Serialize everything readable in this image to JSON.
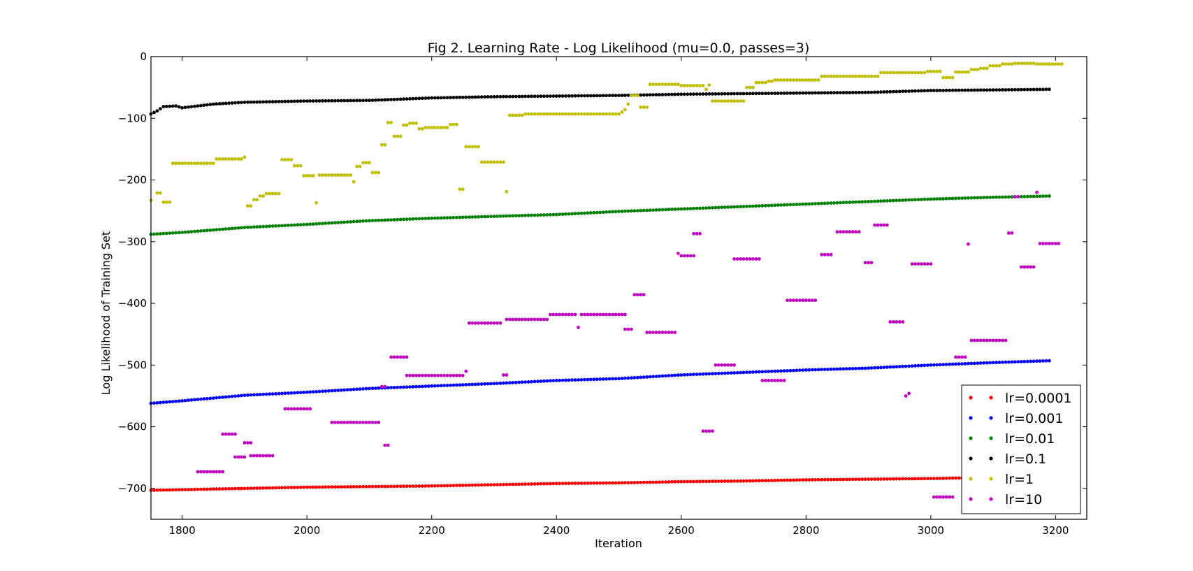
{
  "chart_data": {
    "type": "scatter",
    "title": "Fig 2. Learning Rate - Log Likelihood (mu=0.0, passes=3)",
    "xlabel": "Iteration",
    "ylabel": "Log Likelihood of Training Set",
    "xlim": [
      1750,
      3250
    ],
    "ylim": [
      -750,
      0
    ],
    "x_ticks": [
      1800,
      2000,
      2200,
      2400,
      2600,
      2800,
      3000,
      3200
    ],
    "y_ticks": [
      0,
      -100,
      -200,
      -300,
      -400,
      -500,
      -600,
      -700
    ],
    "x_tick_labels": [
      "1800",
      "2000",
      "2200",
      "2400",
      "2600",
      "2800",
      "3000",
      "3200"
    ],
    "y_tick_labels": [
      "0",
      "−100",
      "−200",
      "−300",
      "−400",
      "−500",
      "−600",
      "−700"
    ],
    "grid": false,
    "legend_position": "lower-right",
    "series": [
      {
        "name": "lr=0.0001",
        "color": "#ff0000",
        "mode": "smooth",
        "x_range": [
          1750,
          3190
        ],
        "step": 5,
        "anchors": [
          [
            1750,
            -703
          ],
          [
            1800,
            -702
          ],
          [
            1900,
            -700
          ],
          [
            2000,
            -698
          ],
          [
            2100,
            -697
          ],
          [
            2200,
            -696
          ],
          [
            2300,
            -694
          ],
          [
            2400,
            -692
          ],
          [
            2500,
            -691
          ],
          [
            2600,
            -689
          ],
          [
            2700,
            -688
          ],
          [
            2800,
            -686
          ],
          [
            2900,
            -685
          ],
          [
            3000,
            -684
          ],
          [
            3100,
            -682
          ],
          [
            3190,
            -680
          ]
        ]
      },
      {
        "name": "lr=0.001",
        "color": "#0000ff",
        "mode": "smooth",
        "x_range": [
          1750,
          3190
        ],
        "step": 5,
        "anchors": [
          [
            1750,
            -562
          ],
          [
            1800,
            -558
          ],
          [
            1900,
            -549
          ],
          [
            2000,
            -544
          ],
          [
            2100,
            -538
          ],
          [
            2200,
            -534
          ],
          [
            2300,
            -530
          ],
          [
            2400,
            -525
          ],
          [
            2500,
            -522
          ],
          [
            2600,
            -516
          ],
          [
            2700,
            -512
          ],
          [
            2800,
            -508
          ],
          [
            2900,
            -505
          ],
          [
            3000,
            -500
          ],
          [
            3100,
            -496
          ],
          [
            3190,
            -493
          ]
        ]
      },
      {
        "name": "lr=0.01",
        "color": "#008000",
        "mode": "smooth",
        "x_range": [
          1750,
          3190
        ],
        "step": 5,
        "anchors": [
          [
            1750,
            -288
          ],
          [
            1800,
            -285
          ],
          [
            1900,
            -277
          ],
          [
            2000,
            -272
          ],
          [
            2100,
            -266
          ],
          [
            2200,
            -262
          ],
          [
            2300,
            -259
          ],
          [
            2400,
            -256
          ],
          [
            2500,
            -251
          ],
          [
            2600,
            -247
          ],
          [
            2700,
            -243
          ],
          [
            2800,
            -239
          ],
          [
            2900,
            -235
          ],
          [
            3000,
            -231
          ],
          [
            3100,
            -228
          ],
          [
            3190,
            -226
          ]
        ]
      },
      {
        "name": "lr=0.1",
        "color": "#000000",
        "mode": "smooth",
        "x_range": [
          1750,
          3190
        ],
        "step": 5,
        "anchors": [
          [
            1750,
            -93
          ],
          [
            1760,
            -88
          ],
          [
            1770,
            -81
          ],
          [
            1790,
            -80
          ],
          [
            1800,
            -83
          ],
          [
            1850,
            -77
          ],
          [
            1900,
            -74
          ],
          [
            2000,
            -72
          ],
          [
            2100,
            -71
          ],
          [
            2200,
            -67
          ],
          [
            2300,
            -65
          ],
          [
            2400,
            -64
          ],
          [
            2500,
            -63
          ],
          [
            2600,
            -61
          ],
          [
            2700,
            -60
          ],
          [
            2800,
            -59
          ],
          [
            2900,
            -58
          ],
          [
            3000,
            -55
          ],
          [
            3100,
            -54
          ],
          [
            3190,
            -53
          ]
        ]
      },
      {
        "name": "lr=1",
        "color": "#bfbf00",
        "mode": "segments",
        "step": 5,
        "segments": [
          [
            1750,
            1750,
            -233
          ],
          [
            1760,
            1765,
            -221
          ],
          [
            1770,
            1780,
            -236
          ],
          [
            1785,
            1850,
            -173
          ],
          [
            1855,
            1895,
            -166
          ],
          [
            1900,
            1900,
            -163
          ],
          [
            1905,
            1910,
            -242
          ],
          [
            1915,
            1920,
            -232
          ],
          [
            1925,
            1930,
            -226
          ],
          [
            1935,
            1955,
            -222
          ],
          [
            1960,
            1975,
            -167
          ],
          [
            1980,
            1990,
            -177
          ],
          [
            1995,
            2010,
            -193
          ],
          [
            2015,
            2015,
            -237
          ],
          [
            2020,
            2070,
            -192
          ],
          [
            2075,
            2075,
            -203
          ],
          [
            2080,
            2085,
            -178
          ],
          [
            2090,
            2100,
            -172
          ],
          [
            2105,
            2115,
            -188
          ],
          [
            2120,
            2125,
            -143
          ],
          [
            2130,
            2135,
            -107
          ],
          [
            2140,
            2150,
            -129
          ],
          [
            2155,
            2160,
            -111
          ],
          [
            2165,
            2175,
            -108
          ],
          [
            2180,
            2185,
            -117
          ],
          [
            2190,
            2225,
            -115
          ],
          [
            2230,
            2240,
            -110
          ],
          [
            2245,
            2250,
            -215
          ],
          [
            2255,
            2275,
            -146
          ],
          [
            2280,
            2315,
            -171
          ],
          [
            2320,
            2320,
            -219
          ],
          [
            2325,
            2345,
            -95
          ],
          [
            2350,
            2500,
            -93
          ],
          [
            2505,
            2505,
            -90
          ],
          [
            2510,
            2510,
            -86
          ],
          [
            2515,
            2515,
            -77
          ],
          [
            2520,
            2530,
            -63
          ],
          [
            2535,
            2545,
            -82
          ],
          [
            2550,
            2595,
            -45
          ],
          [
            2600,
            2635,
            -47
          ],
          [
            2640,
            2640,
            -53
          ],
          [
            2645,
            2645,
            -46
          ],
          [
            2650,
            2700,
            -72
          ],
          [
            2705,
            2715,
            -50
          ],
          [
            2720,
            2735,
            -42
          ],
          [
            2740,
            2745,
            -40
          ],
          [
            2750,
            2820,
            -38
          ],
          [
            2825,
            2915,
            -32
          ],
          [
            2920,
            2990,
            -26
          ],
          [
            2995,
            3015,
            -24
          ],
          [
            3020,
            3035,
            -34
          ],
          [
            3040,
            3060,
            -25
          ],
          [
            3065,
            3075,
            -21
          ],
          [
            3080,
            3090,
            -19
          ],
          [
            3095,
            3110,
            -15
          ],
          [
            3115,
            3130,
            -12
          ],
          [
            3135,
            3165,
            -11
          ],
          [
            3170,
            3210,
            -12
          ]
        ]
      },
      {
        "name": "lr=10",
        "color": "#bf00bf",
        "mode": "segments",
        "step": 5,
        "segments": [
          [
            1825,
            1865,
            -673
          ],
          [
            1865,
            1885,
            -612
          ],
          [
            1885,
            1900,
            -649
          ],
          [
            1900,
            1910,
            -626
          ],
          [
            1910,
            1945,
            -647
          ],
          [
            1965,
            2005,
            -571
          ],
          [
            2040,
            2115,
            -593
          ],
          [
            2120,
            2125,
            -535
          ],
          [
            2125,
            2130,
            -630
          ],
          [
            2135,
            2160,
            -487
          ],
          [
            2160,
            2250,
            -517
          ],
          [
            2255,
            2255,
            -510
          ],
          [
            2260,
            2310,
            -432
          ],
          [
            2315,
            2320,
            -516
          ],
          [
            2320,
            2385,
            -426
          ],
          [
            2390,
            2430,
            -418
          ],
          [
            2435,
            2435,
            -439
          ],
          [
            2440,
            2510,
            -418
          ],
          [
            2510,
            2520,
            -442
          ],
          [
            2525,
            2540,
            -386
          ],
          [
            2545,
            2590,
            -447
          ],
          [
            2595,
            2595,
            -319
          ],
          [
            2600,
            2620,
            -323
          ],
          [
            2620,
            2630,
            -287
          ],
          [
            2635,
            2650,
            -607
          ],
          [
            2655,
            2685,
            -500
          ],
          [
            2685,
            2725,
            -328
          ],
          [
            2730,
            2765,
            -525
          ],
          [
            2770,
            2815,
            -395
          ],
          [
            2825,
            2840,
            -321
          ],
          [
            2850,
            2885,
            -284
          ],
          [
            2895,
            2905,
            -334
          ],
          [
            2910,
            2930,
            -273
          ],
          [
            2935,
            2955,
            -430
          ],
          [
            2960,
            2960,
            -550
          ],
          [
            2965,
            2965,
            -546
          ],
          [
            2970,
            3000,
            -336
          ],
          [
            3005,
            3035,
            -714
          ],
          [
            3040,
            3055,
            -487
          ],
          [
            3060,
            3060,
            -304
          ],
          [
            3065,
            3120,
            -460
          ],
          [
            3125,
            3130,
            -286
          ],
          [
            3135,
            3140,
            -227
          ],
          [
            3145,
            3165,
            -341
          ],
          [
            3170,
            3170,
            -220
          ],
          [
            3175,
            3205,
            -303
          ]
        ]
      }
    ]
  }
}
